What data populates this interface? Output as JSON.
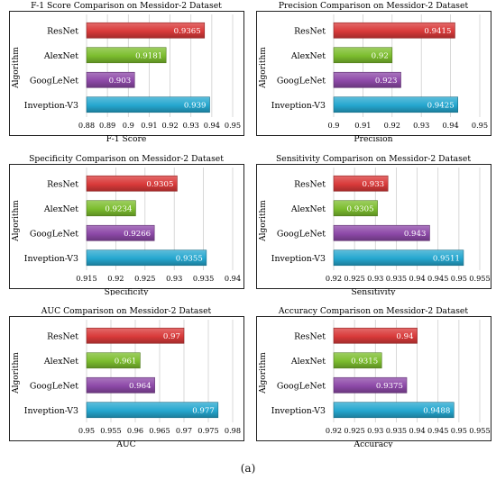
{
  "caption": "(a)",
  "colors": {
    "ResNet": "#d93a3a",
    "AlexNet": "#7cbd2e",
    "GoogLeNet": "#8d49a8",
    "Inveption-V3": "#25a7cf"
  },
  "chart_data": [
    {
      "type": "bar",
      "orientation": "horizontal",
      "title": "F-1 Score Comparison on Messidor-2 Dataset",
      "xlabel": "F-1 Score",
      "ylabel": "Algorithm",
      "categories": [
        "ResNet",
        "AlexNet",
        "GoogLeNet",
        "Inveption-V3"
      ],
      "values": [
        0.9365,
        0.9181,
        0.903,
        0.939
      ],
      "value_labels": [
        "0.9365",
        "0.9181",
        "0.903",
        "0.939"
      ],
      "xlim": [
        0.88,
        0.95
      ],
      "ticks": [
        "0.88",
        "0.89",
        "0.9",
        "0.91",
        "0.92",
        "0.93",
        "0.94",
        "0.95"
      ],
      "grid": true
    },
    {
      "type": "bar",
      "orientation": "horizontal",
      "title": "Precision Comparison on Messidor-2 Dataset",
      "xlabel": "Precision",
      "ylabel": "Algorithm",
      "categories": [
        "ResNet",
        "AlexNet",
        "GoogLeNet",
        "Inveption-V3"
      ],
      "values": [
        0.9415,
        0.92,
        0.923,
        0.9425
      ],
      "value_labels": [
        "0.9415",
        "0.92",
        "0.923",
        "0.9425"
      ],
      "xlim": [
        0.9,
        0.95
      ],
      "ticks": [
        "0.9",
        "0.91",
        "0.92",
        "0.93",
        "0.94",
        "0.95"
      ],
      "grid": true
    },
    {
      "type": "bar",
      "orientation": "horizontal",
      "title": "Specificity Comparison on Messidor-2 Dataset",
      "xlabel": "Specificity",
      "ylabel": "Algorithm",
      "categories": [
        "ResNet",
        "AlexNet",
        "GoogLeNet",
        "Inveption-V3"
      ],
      "values": [
        0.9305,
        0.9234,
        0.9266,
        0.9355
      ],
      "value_labels": [
        "0.9305",
        "0.9234",
        "0.9266",
        "0.9355"
      ],
      "xlim": [
        0.915,
        0.94
      ],
      "ticks": [
        "0.915",
        "0.92",
        "0.925",
        "0.93",
        "0.935",
        "0.94"
      ],
      "grid": true
    },
    {
      "type": "bar",
      "orientation": "horizontal",
      "title": "Sensitivity Comparison on Messidor-2 Dataset",
      "xlabel": "Sensitivity",
      "ylabel": "Algorithm",
      "categories": [
        "ResNet",
        "AlexNet",
        "GoogLeNet",
        "Inveption-V3"
      ],
      "values": [
        0.933,
        0.9305,
        0.943,
        0.9511
      ],
      "value_labels": [
        "0.933",
        "0.9305",
        "0.943",
        "0.9511"
      ],
      "xlim": [
        0.92,
        0.955
      ],
      "ticks": [
        "0.92",
        "0.925",
        "0.93",
        "0.935",
        "0.94",
        "0.945",
        "0.95",
        "0.955"
      ],
      "grid": true
    },
    {
      "type": "bar",
      "orientation": "horizontal",
      "title": "AUC Comparison on Messidor-2 Dataset",
      "xlabel": "AUC",
      "ylabel": "Algorithm",
      "categories": [
        "ResNet",
        "AlexNet",
        "GoogLeNet",
        "Inveption-V3"
      ],
      "values": [
        0.97,
        0.961,
        0.964,
        0.977
      ],
      "value_labels": [
        "0.97",
        "0.961",
        "0.964",
        "0.977"
      ],
      "xlim": [
        0.95,
        0.98
      ],
      "ticks": [
        "0.95",
        "0.955",
        "0.96",
        "0.965",
        "0.97",
        "0.975",
        "0.98"
      ],
      "grid": true
    },
    {
      "type": "bar",
      "orientation": "horizontal",
      "title": "Accuracy Comparison on Messidor-2 Dataset",
      "xlabel": "Accuracy",
      "ylabel": "Algorithm",
      "categories": [
        "ResNet",
        "AlexNet",
        "GoogLeNet",
        "Inveption-V3"
      ],
      "values": [
        0.94,
        0.9315,
        0.9375,
        0.9488
      ],
      "value_labels": [
        "0.94",
        "0.9315",
        "0.9375",
        "0.9488"
      ],
      "xlim": [
        0.92,
        0.955
      ],
      "ticks": [
        "0.92",
        "0.925",
        "0.93",
        "0.935",
        "0.94",
        "0.945",
        "0.95",
        "0.955"
      ],
      "grid": true
    }
  ]
}
